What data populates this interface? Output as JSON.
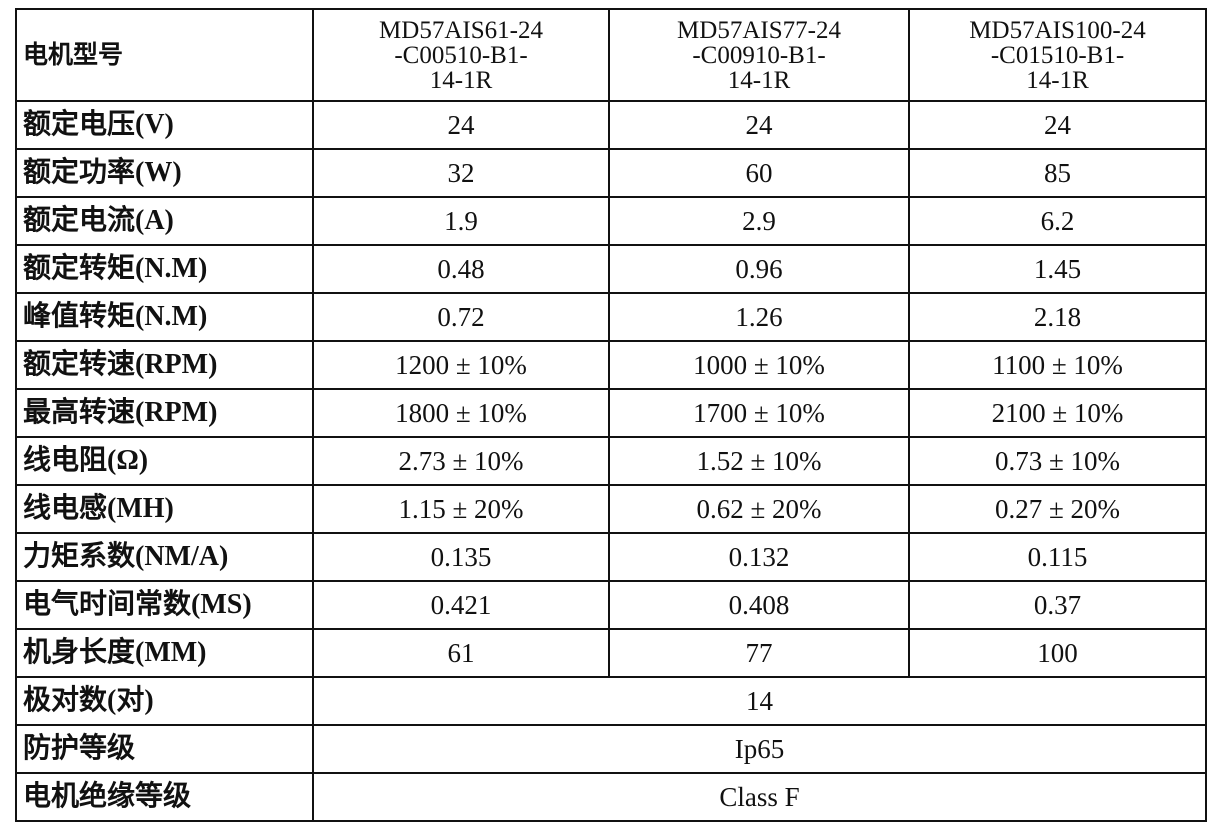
{
  "table": {
    "header": {
      "label": "电机型号",
      "models": [
        [
          "MD57AIS61-24",
          "-C00510-B1-",
          "14-1R"
        ],
        [
          "MD57AIS77-24",
          "-C00910-B1-",
          "14-1R"
        ],
        [
          "MD57AIS100-24",
          "-C01510-B1-",
          "14-1R"
        ]
      ]
    },
    "rows": [
      [
        "额定电压(V)",
        "24",
        "24",
        "24"
      ],
      [
        "额定功率(W)",
        "32",
        "60",
        "85"
      ],
      [
        "额定电流(A)",
        "1.9",
        "2.9",
        "6.2"
      ],
      [
        "额定转矩(N.M)",
        "0.48",
        "0.96",
        "1.45"
      ],
      [
        "峰值转矩(N.M)",
        "0.72",
        "1.26",
        "2.18"
      ],
      [
        "额定转速(RPM)",
        "1200 ± 10%",
        "1000 ± 10%",
        "1100 ± 10%"
      ],
      [
        "最高转速(RPM)",
        "1800 ± 10%",
        "1700 ± 10%",
        "2100 ± 10%"
      ],
      [
        "线电阻(Ω)",
        "2.73 ± 10%",
        "1.52 ± 10%",
        "0.73 ± 10%"
      ],
      [
        "线电感(MH)",
        "1.15 ± 20%",
        "0.62 ± 20%",
        "0.27 ± 20%"
      ],
      [
        "力矩系数(NM/A)",
        "0.135",
        "0.132",
        "0.115"
      ],
      [
        "电气时间常数(MS)",
        "0.421",
        "0.408",
        "0.37"
      ],
      [
        "机身长度(MM)",
        "61",
        "77",
        "100"
      ]
    ],
    "shared_rows": [
      [
        "极对数(对)",
        "14"
      ],
      [
        "防护等级",
        "Ip65"
      ],
      [
        "电机绝缘等级",
        "Class F"
      ]
    ]
  }
}
